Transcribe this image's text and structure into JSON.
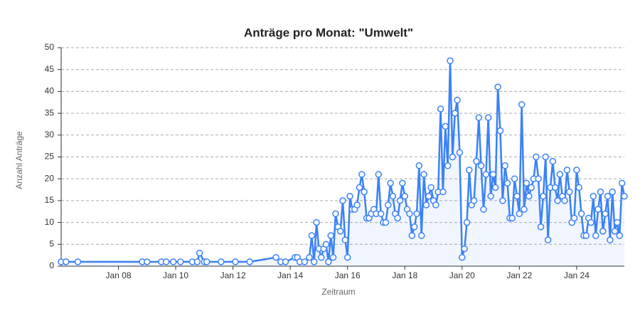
{
  "chart_data": {
    "type": "line",
    "title": "Anträge pro Monat: \"Umwelt\"",
    "x_label": "Zeitraum",
    "y_label": "Anzahl Anträge",
    "x": [
      "2006-01",
      "2006-03",
      "2006-08",
      "2008-11",
      "2009-01",
      "2009-07",
      "2009-09",
      "2009-12",
      "2010-03",
      "2010-08",
      "2010-10",
      "2010-11",
      "2011-01",
      "2011-02",
      "2011-08",
      "2012-02",
      "2012-08",
      "2013-07",
      "2013-09",
      "2013-11",
      "2014-03",
      "2014-04",
      "2014-05",
      "2014-07",
      "2014-09",
      "2014-10",
      "2014-11",
      "2014-12",
      "2015-01",
      "2015-02",
      "2015-03",
      "2015-04",
      "2015-05",
      "2015-06",
      "2015-07",
      "2015-08",
      "2015-09",
      "2015-10",
      "2015-11",
      "2015-12",
      "2016-01",
      "2016-02",
      "2016-03",
      "2016-04",
      "2016-05",
      "2016-06",
      "2016-07",
      "2016-08",
      "2016-09",
      "2016-10",
      "2016-11",
      "2016-12",
      "2017-01",
      "2017-02",
      "2017-03",
      "2017-04",
      "2017-05",
      "2017-06",
      "2017-07",
      "2017-08",
      "2017-09",
      "2017-10",
      "2017-11",
      "2017-12",
      "2018-01",
      "2018-02",
      "2018-03",
      "2018-04",
      "2018-05",
      "2018-06",
      "2018-07",
      "2018-08",
      "2018-09",
      "2018-10",
      "2018-11",
      "2018-12",
      "2019-01",
      "2019-02",
      "2019-03",
      "2019-04",
      "2019-05",
      "2019-06",
      "2019-07",
      "2019-08",
      "2019-09",
      "2019-10",
      "2019-11",
      "2019-12",
      "2020-01",
      "2020-02",
      "2020-03",
      "2020-04",
      "2020-05",
      "2020-06",
      "2020-07",
      "2020-08",
      "2020-09",
      "2020-10",
      "2020-11",
      "2020-12",
      "2021-01",
      "2021-02",
      "2021-03",
      "2021-04",
      "2021-05",
      "2021-06",
      "2021-07",
      "2021-08",
      "2021-09",
      "2021-10",
      "2021-11",
      "2021-12",
      "2022-01",
      "2022-02",
      "2022-03",
      "2022-04",
      "2022-05",
      "2022-06",
      "2022-07",
      "2022-08",
      "2022-09",
      "2022-10",
      "2022-11",
      "2022-12",
      "2023-01",
      "2023-02",
      "2023-03",
      "2023-04",
      "2023-05",
      "2023-06",
      "2023-07",
      "2023-08",
      "2023-09",
      "2023-10",
      "2023-11",
      "2023-12",
      "2024-01",
      "2024-02",
      "2024-03",
      "2024-04",
      "2024-05",
      "2024-06",
      "2024-07",
      "2024-08",
      "2024-09",
      "2024-10",
      "2024-11",
      "2024-12",
      "2025-01",
      "2025-02",
      "2025-03",
      "2025-04",
      "2025-05",
      "2025-06",
      "2025-07",
      "2025-08",
      "2025-09"
    ],
    "series": [
      {
        "name": "Anträge",
        "color": "#3b82f6",
        "values": [
          1,
          1,
          1,
          1,
          1,
          1,
          1,
          1,
          1,
          1,
          1,
          3,
          1,
          1,
          1,
          1,
          1,
          2,
          1,
          1,
          2,
          2,
          1,
          1,
          2,
          7,
          1,
          10,
          4,
          2,
          4,
          5,
          1,
          7,
          2,
          12,
          9,
          8,
          15,
          6,
          2,
          16,
          13,
          13,
          14,
          18,
          21,
          17,
          11,
          11,
          12,
          13,
          12,
          21,
          12,
          10,
          10,
          14,
          19,
          16,
          12,
          11,
          15,
          19,
          16,
          13,
          12,
          7,
          9,
          12,
          23,
          7,
          21,
          14,
          16,
          18,
          15,
          14,
          17,
          36,
          17,
          32,
          23,
          47,
          25,
          35,
          38,
          26,
          2,
          4,
          10,
          22,
          14,
          15,
          24,
          34,
          23,
          13,
          21,
          34,
          16,
          21,
          18,
          41,
          31,
          15,
          23,
          19,
          11,
          11,
          20,
          16,
          12,
          37,
          13,
          19,
          16,
          18,
          20,
          25,
          20,
          9,
          16,
          25,
          6,
          18,
          24,
          18,
          15,
          21,
          16,
          15,
          22,
          17,
          10,
          11,
          22,
          18,
          12,
          7,
          7,
          11,
          10,
          16,
          7,
          13,
          17,
          8,
          12,
          16,
          6,
          17,
          8,
          10,
          7,
          19,
          16
        ]
      }
    ],
    "xlim": [
      "2006-01",
      "2025-09"
    ],
    "xticks": [
      {
        "value": "2008-01",
        "label": "Jan 08"
      },
      {
        "value": "2010-01",
        "label": "Jan 10"
      },
      {
        "value": "2012-01",
        "label": "Jan 12"
      },
      {
        "value": "2014-01",
        "label": "Jan 14"
      },
      {
        "value": "2016-01",
        "label": "Jan 16"
      },
      {
        "value": "2018-01",
        "label": "Jan 18"
      },
      {
        "value": "2020-01",
        "label": "Jan 20"
      },
      {
        "value": "2022-01",
        "label": "Jan 22"
      },
      {
        "value": "2024-01",
        "label": "Jan 24"
      }
    ],
    "ylim": [
      0,
      50
    ],
    "yticks": [
      0,
      5,
      10,
      15,
      20,
      25,
      30,
      35,
      40,
      45,
      50
    ],
    "grid": true
  }
}
